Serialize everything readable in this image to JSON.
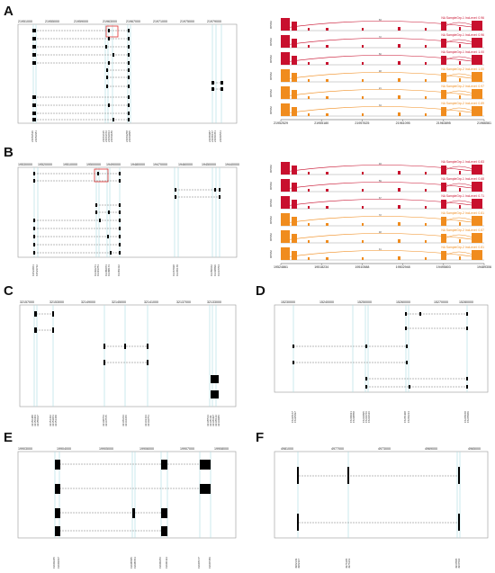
{
  "panel_labels": [
    "A",
    "B",
    "C",
    "D",
    "E",
    "F"
  ],
  "colors": {
    "exon": "#000000",
    "intron": "#777777",
    "guide": "#a8dce0",
    "highlight": "#e03030",
    "red": "#c8102e",
    "orange": "#f08c1e"
  },
  "A": {
    "ticks": [
      "21951000",
      "21955000",
      "21959000",
      "21963000",
      "21967000",
      "21971000",
      "21975000",
      "21979000"
    ],
    "labels": [
      "21952529",
      "21952681",
      "21961615",
      "21961672",
      "21962014",
      "21963189",
      "21963258",
      "21963895",
      "21965087",
      "21965157",
      "21966351",
      "21966561"
    ],
    "sashimi": {
      "axis": [
        "21952529",
        "21955180",
        "21957625",
        "21961095",
        "21963895",
        "21966561"
      ],
      "rpkm": "RPKM",
      "samples": [
        {
          "legend": "NA SampleGrp-1 IncLevel: 0.96",
          "group": "red",
          "count": "83"
        },
        {
          "legend": "NA SampleGrp-1 IncLevel: 0.96",
          "group": "red",
          "count": "72"
        },
        {
          "legend": "NA SampleGrp-1 IncLevel: 1.00",
          "group": "red",
          "count": "60"
        },
        {
          "legend": "NA SampleGrp-2 IncLevel: 1.00",
          "group": "orange",
          "count": "48"
        },
        {
          "legend": "NA SampleGrp-2 IncLevel: 0.97",
          "group": "orange",
          "count": "21"
        },
        {
          "legend": "NA SampleGrp-2 IncLevel: 0.89",
          "group": "orange",
          "count": "34"
        }
      ]
    }
  },
  "B": {
    "ticks": [
      "19530000",
      "19520000",
      "19510000",
      "19500000",
      "19490000",
      "19480000",
      "19470000",
      "19460000",
      "19450000",
      "19440000"
    ],
    "labels": [
      "19524861",
      "19523742",
      "19492271",
      "19491781",
      "19489073",
      "19488173",
      "19483412",
      "19467028",
      "19465170",
      "19450662",
      "19448899",
      "19447704"
    ],
    "sashimi": {
      "axis": [
        "19524861",
        "19518234",
        "19510588",
        "19502948",
        "19495803",
        "19489306"
      ],
      "rpkm": "RPKM",
      "samples": [
        {
          "legend": "NA SampleGrp-1 IncLevel: 0.83",
          "group": "red",
          "count": "93"
        },
        {
          "legend": "NA SampleGrp-1 IncLevel: 0.68",
          "group": "red",
          "count": "59"
        },
        {
          "legend": "NA SampleGrp-1 IncLevel: 0.71",
          "group": "red",
          "count": "67"
        },
        {
          "legend": "NA SampleGrp-2 IncLevel: 0.81",
          "group": "orange",
          "count": "72"
        },
        {
          "legend": "NA SampleGrp-2 IncLevel: 0.87",
          "group": "orange",
          "count": "48"
        },
        {
          "legend": "NA SampleGrp-2 IncLevel: 0.81",
          "group": "orange",
          "count": "41"
        }
      ]
    }
  },
  "C": {
    "ticks": [
      "32157000",
      "32153000",
      "32149000",
      "32145000",
      "32141000",
      "32137000",
      "32133000"
    ],
    "labels": [
      "32156488",
      "32156303",
      "32155917",
      "32154462",
      "32153961",
      "32151460",
      "32148763",
      "32147575",
      "32145233",
      "32144366",
      "32143413",
      "32142751",
      "32135513",
      "32135411",
      "32135307",
      "32135142",
      "32134986"
    ]
  },
  "D": {
    "ticks": [
      "15230000",
      "15240000",
      "15250000",
      "15260000",
      "15270000",
      "15280000"
    ],
    "labels": [
      "15226167",
      "15225997",
      "15239921",
      "15238858",
      "15246895",
      "15246766",
      "15246646",
      "15265408",
      "15266213",
      "15278978",
      "15278069"
    ]
  },
  "E": {
    "ticks": [
      "19903000",
      "19904000",
      "19905000",
      "19906000",
      "19907000",
      "19908000"
    ],
    "labels": [
      "19903365",
      "19903667",
      "19905585",
      "19905654",
      "19906256",
      "19906423",
      "19907177",
      "19907459"
    ]
  },
  "F": {
    "ticks": [
      "4981000",
      "4977000",
      "4973000",
      "4969000",
      "4965000"
    ],
    "labels": [
      "4982139",
      "4982117",
      "4976195",
      "4976161",
      "4967895",
      "4967694"
    ]
  }
}
